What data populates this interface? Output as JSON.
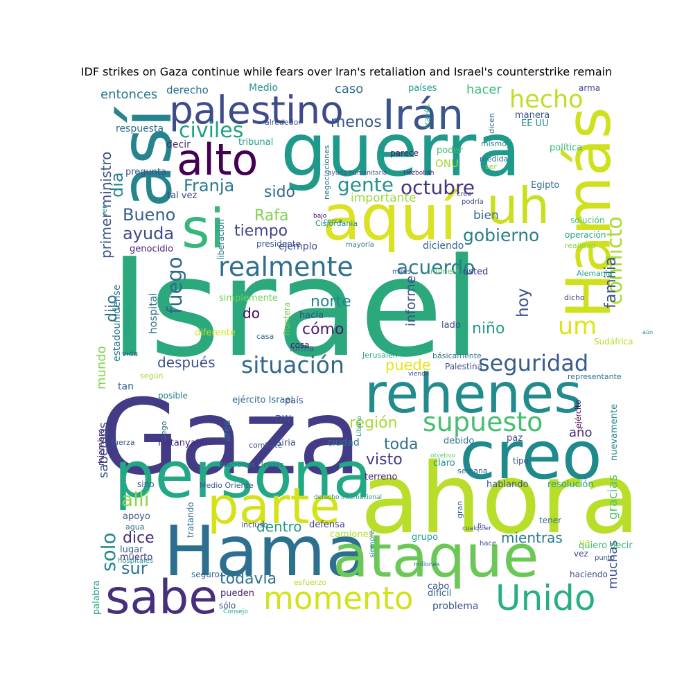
{
  "title": "IDF strikes on Gaza continue while fears over Iran's retaliation and Israel's counterstrike remain",
  "words": [
    {
      "text": "Israel",
      "color": "#2ba87c"
    },
    {
      "text": "Gaza",
      "color": "#433b86"
    },
    {
      "text": "ahora",
      "color": "#b8de29"
    },
    {
      "text": "persona",
      "color": "#22a884"
    },
    {
      "text": "Hama",
      "color": "#2c6f8e"
    },
    {
      "text": "guerra",
      "color": "#1f9a8a"
    },
    {
      "text": "creo",
      "color": "#1e8a8c"
    },
    {
      "text": "ataque",
      "color": "#6cc856"
    },
    {
      "text": "rehenes",
      "color": "#228b8d"
    },
    {
      "text": "aquí",
      "color": "#dae223"
    },
    {
      "text": "Hamás",
      "color": "#cfe11c"
    },
    {
      "text": "sabe",
      "color": "#472f7d"
    },
    {
      "text": "así",
      "color": "#25848e"
    },
    {
      "text": "si",
      "color": "#35b779"
    },
    {
      "text": "parte",
      "color": "#d4e21a"
    },
    {
      "text": "palestino",
      "color": "#3e4a89"
    },
    {
      "text": "Irán",
      "color": "#39558c"
    },
    {
      "text": "uh",
      "color": "#c9e020"
    },
    {
      "text": "momento",
      "color": "#d2e21b"
    },
    {
      "text": "Unido",
      "color": "#29af7f"
    },
    {
      "text": "alto",
      "color": "#440154"
    },
    {
      "text": "supuesto",
      "color": "#44bf70"
    },
    {
      "text": "realmente",
      "color": "#2d708e"
    },
    {
      "text": "situación",
      "color": "#31688e"
    },
    {
      "text": "seguridad",
      "color": "#365c8d"
    },
    {
      "text": "hecho",
      "color": "#bddf26"
    },
    {
      "text": "conflicto",
      "color": "#a8db34"
    },
    {
      "text": "civiles",
      "color": "#1fa088"
    },
    {
      "text": "octubre",
      "color": "#46327e"
    },
    {
      "text": "acuerdo",
      "color": "#287c8e"
    },
    {
      "text": "gente",
      "color": "#21918c"
    },
    {
      "text": "Franja",
      "color": "#2a788e"
    },
    {
      "text": "Bueno",
      "color": "#355f8d"
    },
    {
      "text": "ayuda",
      "color": "#3f4889"
    },
    {
      "text": "tiempo",
      "color": "#404688"
    },
    {
      "text": "gobierno",
      "color": "#287d8e"
    },
    {
      "text": "fuego",
      "color": "#2f6b8e"
    },
    {
      "text": "día",
      "color": "#26828e"
    },
    {
      "text": "Rafa",
      "color": "#7fd34e"
    },
    {
      "text": "sido",
      "color": "#2e6e8e"
    },
    {
      "text": "menos",
      "color": "#38598c"
    },
    {
      "text": "familia",
      "color": "#3b528b"
    },
    {
      "text": "hoy",
      "color": "#3d4e8a"
    },
    {
      "text": "um",
      "color": "#dfe318"
    },
    {
      "text": "norte",
      "color": "#25858e"
    },
    {
      "text": "niño",
      "color": "#1f9e89"
    },
    {
      "text": "cómo",
      "color": "#481b6d"
    },
    {
      "text": "dijo",
      "color": "#2d718e"
    },
    {
      "text": "después",
      "color": "#3d4d8a"
    },
    {
      "text": "puede",
      "color": "#e5e419"
    },
    {
      "text": "región",
      "color": "#a5db36"
    },
    {
      "text": "toda",
      "color": "#2d718e"
    },
    {
      "text": "visto",
      "color": "#443983"
    },
    {
      "text": "allí",
      "color": "#8bd646"
    },
    {
      "text": "solo",
      "color": "#23898e"
    },
    {
      "text": "dice",
      "color": "#482979"
    },
    {
      "text": "sur",
      "color": "#2b758e"
    },
    {
      "text": "todavía",
      "color": "#2c728e"
    },
    {
      "text": "dentro",
      "color": "#1e9b8a"
    },
    {
      "text": "mientras",
      "color": "#297a8e"
    },
    {
      "text": "muchas",
      "color": "#3a548c"
    },
    {
      "text": "gracias",
      "color": "#56c667"
    },
    {
      "text": "sabemos",
      "color": "#3b518b"
    },
    {
      "text": "año",
      "color": "#482677"
    },
    {
      "text": "entonces",
      "color": "#2a788e"
    },
    {
      "text": "caso",
      "color": "#2f6c8e"
    },
    {
      "text": "hacer",
      "color": "#3aba76"
    },
    {
      "text": "importante",
      "color": "#9bd93c"
    },
    {
      "text": "bien",
      "color": "#31688e"
    },
    {
      "text": "do",
      "color": "#440256"
    },
    {
      "text": "informe",
      "color": "#3b528b"
    },
    {
      "text": "hospital",
      "color": "#2c728e"
    },
    {
      "text": "primer ministro",
      "color": "#3b528b"
    },
    {
      "text": "mundo",
      "color": "#84d44b"
    },
    {
      "text": "estadounidense",
      "color": "#2b758e"
    },
    {
      "text": "derecho",
      "color": "#2c728e"
    },
    {
      "text": "Medio",
      "color": "#218f8d"
    },
    {
      "text": "países",
      "color": "#1e9c89"
    },
    {
      "text": "arma",
      "color": "#404588"
    },
    {
      "text": "respuesta",
      "color": "#2e6e8e"
    },
    {
      "text": "alrededor",
      "color": "#3a538b"
    },
    {
      "text": "través",
      "color": "#22a785"
    },
    {
      "text": "dicen",
      "color": "#2f6b8e"
    },
    {
      "text": "manera",
      "color": "#3d4e8a"
    },
    {
      "text": "EE UU",
      "color": "#23898e"
    },
    {
      "text": "decir",
      "color": "#472c7a"
    },
    {
      "text": "tribunal",
      "color": "#1f9e89"
    },
    {
      "text": "negociaciones",
      "color": "#2e6f8e"
    },
    {
      "text": "parece",
      "color": "#481b6d"
    },
    {
      "text": "poder",
      "color": "#3fbc73"
    },
    {
      "text": "mismo",
      "color": "#24878e"
    },
    {
      "text": "política",
      "color": "#35b779"
    },
    {
      "text": "pregunta",
      "color": "#3b518b"
    },
    {
      "text": "ONU",
      "color": "#a2da37"
    },
    {
      "text": "medida",
      "color": "#2d708e"
    },
    {
      "text": "ser",
      "color": "#8ed645"
    },
    {
      "text": "ayuda humanitaria",
      "color": "#3b528b"
    },
    {
      "text": "Hezbolláh",
      "color": "#482475"
    },
    {
      "text": "tal vez",
      "color": "#404688"
    },
    {
      "text": "Egipto",
      "color": "#2e6f8e"
    },
    {
      "text": "cree",
      "color": "#3e4989"
    },
    {
      "text": "podría",
      "color": "#3c4f8a"
    },
    {
      "text": "ver",
      "color": "#1f998a"
    },
    {
      "text": "bajo",
      "color": "#440154"
    },
    {
      "text": "cerca",
      "color": "#218f8d"
    },
    {
      "text": "Cisjordania",
      "color": "#24878e"
    },
    {
      "text": "solución",
      "color": "#4ac16d"
    },
    {
      "text": "liberación",
      "color": "#2b758e"
    },
    {
      "text": "genocidio",
      "color": "#482475"
    },
    {
      "text": "presidente",
      "color": "#38598c"
    },
    {
      "text": "mayoría",
      "color": "#2a788e"
    },
    {
      "text": "operación",
      "color": "#20a486"
    },
    {
      "text": "ejemplo",
      "color": "#3e4c8a"
    },
    {
      "text": "diciendo",
      "color": "#32648e"
    },
    {
      "text": "realidad",
      "color": "#86d549"
    },
    {
      "text": "miles",
      "color": "#3a548c"
    },
    {
      "text": "número",
      "color": "#5ec962"
    },
    {
      "text": "usted",
      "color": "#472d7b"
    },
    {
      "text": "Alemania",
      "color": "#20a386"
    },
    {
      "text": "nuevo",
      "color": "#1fa287"
    },
    {
      "text": "simplemente",
      "color": "#73d056"
    },
    {
      "text": "frontera",
      "color": "#74d055"
    },
    {
      "text": "dicho",
      "color": "#433e85"
    },
    {
      "text": "hacia",
      "color": "#3e4a89"
    },
    {
      "text": "lado",
      "color": "#3e4989"
    },
    {
      "text": "aún",
      "color": "#25858e"
    },
    {
      "text": "diferente",
      "color": "#cde11d"
    },
    {
      "text": "casa",
      "color": "#2f6c8e"
    },
    {
      "text": "forma",
      "color": "#375b8d"
    },
    {
      "text": "cosa",
      "color": "#481f70"
    },
    {
      "text": "Sudáfrica",
      "color": "#b5de2b"
    },
    {
      "text": "vida",
      "color": "#355f8d"
    },
    {
      "text": "Jerusalén",
      "color": "#20a386"
    },
    {
      "text": "básicamente",
      "color": "#2c738e"
    },
    {
      "text": "Palestina",
      "color": "#3b528b"
    },
    {
      "text": "según",
      "color": "#a0da39"
    },
    {
      "text": "viendo",
      "color": "#3e4a89"
    },
    {
      "text": "representante",
      "color": "#2e6e8e"
    },
    {
      "text": "tan",
      "color": "#355e8d"
    },
    {
      "text": "posible",
      "color": "#287d8e"
    },
    {
      "text": "ejército",
      "color": "#440154"
    },
    {
      "text": "nuevamente",
      "color": "#24868e"
    },
    {
      "text": "ejército Israel",
      "color": "#2e6f8e"
    },
    {
      "text": "país",
      "color": "#3b518b"
    },
    {
      "text": "área",
      "color": "#2c728e"
    },
    {
      "text": "objetivo",
      "color": "#5ec962"
    },
    {
      "text": "DW",
      "color": "#3b528b"
    },
    {
      "text": "luego",
      "color": "#31688e"
    },
    {
      "text": "miembro",
      "color": "#481a6c"
    },
    {
      "text": "fuerza",
      "color": "#39568c"
    },
    {
      "text": "Netanyahu",
      "color": "#472a7a"
    },
    {
      "text": "combate",
      "color": "#3e4c8a"
    },
    {
      "text": "Siria",
      "color": "#3a538b"
    },
    {
      "text": "ciudad",
      "color": "#2d718e"
    },
    {
      "text": "Líbano",
      "color": "#1f958b"
    },
    {
      "text": "debido",
      "color": "#2c728e"
    },
    {
      "text": "paz",
      "color": "#3e4c8a"
    },
    {
      "text": "tratando",
      "color": "#306a8e"
    },
    {
      "text": "Naciones Unidas",
      "color": "#2e6f8e"
    },
    {
      "text": "claro",
      "color": "#218f8d"
    },
    {
      "text": "tipo",
      "color": "#3b528b"
    },
    {
      "text": "sino",
      "color": "#38598c"
    },
    {
      "text": "semana",
      "color": "#31688e"
    },
    {
      "text": "terreno",
      "color": "#482071"
    },
    {
      "text": "hablando",
      "color": "#3b518b"
    },
    {
      "text": "resolución",
      "color": "#1f9e89"
    },
    {
      "text": "Medio Oriente",
      "color": "#39568c"
    },
    {
      "text": "derecho internacional",
      "color": "#21918c"
    },
    {
      "text": "gran",
      "color": "#31688e"
    },
    {
      "text": "tener",
      "color": "#2c728e"
    },
    {
      "text": "apoyo",
      "color": "#39568c"
    },
    {
      "text": "incluso",
      "color": "#3d4d8a"
    },
    {
      "text": "defensa",
      "color": "#404588"
    },
    {
      "text": "cualquier",
      "color": "#3b528b"
    },
    {
      "text": "agua",
      "color": "#2e6e8e"
    },
    {
      "text": "camiones",
      "color": "#b2dd2d"
    },
    {
      "text": "grupo",
      "color": "#1fa088"
    },
    {
      "text": "quiero decir",
      "color": "#3bbb75"
    },
    {
      "text": "lugar",
      "color": "#34618d"
    },
    {
      "text": "punto",
      "color": "#3b518b"
    },
    {
      "text": "muerto",
      "color": "#472f7d"
    },
    {
      "text": "hace",
      "color": "#3c508b"
    },
    {
      "text": "va",
      "color": "#b8de29"
    },
    {
      "text": "vez",
      "color": "#3f4788"
    },
    {
      "text": "siempre",
      "color": "#26818e"
    },
    {
      "text": "palabra",
      "color": "#1fa187"
    },
    {
      "text": "hospitales",
      "color": "#228d8d"
    },
    {
      "text": "esfuerzo",
      "color": "#b2dd2d"
    },
    {
      "text": "seguro",
      "color": "#306a8e"
    },
    {
      "text": "cabo",
      "color": "#3b528b"
    },
    {
      "text": "haciendo",
      "color": "#3d4e8a"
    },
    {
      "text": "pueden",
      "color": "#481f70"
    },
    {
      "text": "difícil",
      "color": "#355f8d"
    },
    {
      "text": "sólo",
      "color": "#3c4f8a"
    },
    {
      "text": "problema",
      "color": "#3b518b"
    },
    {
      "text": "Consejo",
      "color": "#22a785"
    },
    {
      "text": "millones",
      "color": "#2e6f8e"
    },
    {
      "text": "fin",
      "color": "#3f4889"
    },
    {
      "text": "mucha",
      "color": "#482979"
    }
  ]
}
